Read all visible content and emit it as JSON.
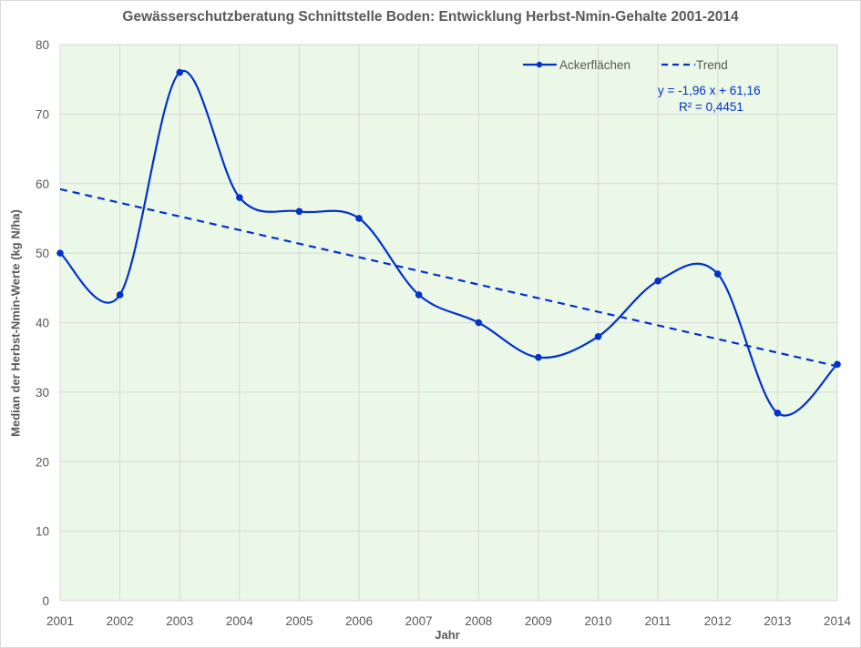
{
  "chart_data": {
    "type": "line",
    "title": "Gewässerschutzberatung Schnittstelle Boden: Entwicklung Herbst-Nmin-Gehalte 2001-2014",
    "xlabel": "Jahr",
    "ylabel": "Median der Herbst-Nmin-Werte (kg N/ha)",
    "categories": [
      "2001",
      "2002",
      "2003",
      "2004",
      "2005",
      "2006",
      "2007",
      "2008",
      "2009",
      "2010",
      "2011",
      "2012",
      "2013",
      "2014"
    ],
    "ylim": [
      0,
      80
    ],
    "yticks": [
      "0",
      "10",
      "20",
      "30",
      "40",
      "50",
      "60",
      "70",
      "80"
    ],
    "ytick_values": [
      0,
      10,
      20,
      30,
      40,
      50,
      60,
      70,
      80
    ],
    "grid": true,
    "legend_position": "top-right",
    "series": [
      {
        "name": "Ackerflächen",
        "style": "smooth-line-with-markers",
        "color": "#0033cc",
        "values": [
          50,
          44,
          76,
          58,
          56,
          55,
          44,
          40,
          35,
          38,
          46,
          47,
          27,
          34
        ]
      }
    ],
    "trendline": {
      "name": "Trend",
      "style": "dashed",
      "color": "#0033cc",
      "slope": -1.96,
      "intercept": 61.16,
      "equation": "y = -1,96 x + 61,16",
      "r_squared": "R² = 0,4451"
    },
    "plot_background": "#ebf7e7",
    "grid_color": "#d9d9d9"
  }
}
